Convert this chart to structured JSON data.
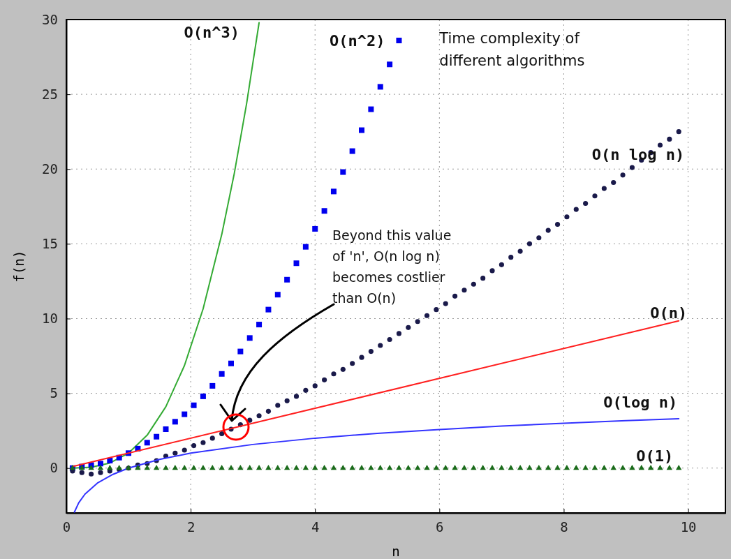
{
  "chart_data": {
    "type": "scatter",
    "title": "Time complexity of different algorithms",
    "xlabel": "n",
    "ylabel": "f(n)",
    "xlim": [
      0,
      10.6
    ],
    "ylim": [
      -3,
      30
    ],
    "xticks": [
      0,
      2,
      4,
      6,
      8,
      10
    ],
    "yticks": [
      0,
      5,
      10,
      15,
      20,
      25,
      30
    ],
    "grid": true,
    "annotations": [
      "Beyond this value of 'n', O(n log n) becomes costlier than O(n)"
    ],
    "series": [
      {
        "name": "O(n^3)",
        "type": "line",
        "color": "#33aa33",
        "marker": "none",
        "x": [
          0.1,
          0.4,
          0.7,
          1.0,
          1.3,
          1.6,
          1.9,
          2.2,
          2.5,
          2.7,
          2.9,
          3.1
        ],
        "values": [
          0,
          0.06,
          0.34,
          1,
          2.2,
          4.1,
          6.86,
          10.65,
          15.63,
          19.68,
          24.39,
          29.79
        ]
      },
      {
        "name": "O(n^2)",
        "color": "#0000ee",
        "marker": "square",
        "x": [
          0.1,
          0.25,
          0.4,
          0.55,
          0.7,
          0.85,
          1.0,
          1.15,
          1.3,
          1.45,
          1.6,
          1.75,
          1.9,
          2.05,
          2.2,
          2.35,
          2.5,
          2.65,
          2.8,
          2.95,
          3.1,
          3.25,
          3.4,
          3.55,
          3.7,
          3.85,
          4.0,
          4.15,
          4.3,
          4.45,
          4.6,
          4.75,
          4.9,
          5.05,
          5.2,
          5.35
        ],
        "values": [
          0,
          0.1,
          0.2,
          0.3,
          0.5,
          0.7,
          1,
          1.3,
          1.7,
          2.1,
          2.6,
          3.1,
          3.6,
          4.2,
          4.8,
          5.5,
          6.3,
          7,
          7.8,
          8.7,
          9.6,
          10.6,
          11.6,
          12.6,
          13.7,
          14.8,
          16,
          17.2,
          18.5,
          19.8,
          21.2,
          22.6,
          24,
          25.5,
          27,
          28.6
        ]
      },
      {
        "name": "O(n log n)",
        "color": "#1a1a4a",
        "marker": "circle",
        "x": [
          0.1,
          0.25,
          0.4,
          0.55,
          0.7,
          0.85,
          1.0,
          1.15,
          1.3,
          1.45,
          1.6,
          1.75,
          1.9,
          2.05,
          2.2,
          2.35,
          2.5,
          2.65,
          2.8,
          2.95,
          3.1,
          3.25,
          3.4,
          3.55,
          3.7,
          3.85,
          4.0,
          4.15,
          4.3,
          4.45,
          4.6,
          4.75,
          4.9,
          5.05,
          5.2,
          5.35,
          5.5,
          5.65,
          5.8,
          5.95,
          6.1,
          6.25,
          6.4,
          6.55,
          6.7,
          6.85,
          7.0,
          7.15,
          7.3,
          7.45,
          7.6,
          7.75,
          7.9,
          8.05,
          8.2,
          8.35,
          8.5,
          8.65,
          8.8,
          8.95,
          9.1,
          9.25,
          9.4,
          9.55,
          9.7,
          9.85
        ],
        "values": [
          -0.2,
          -0.3,
          -0.4,
          -0.3,
          -0.2,
          -0.1,
          0,
          0.2,
          0.3,
          0.5,
          0.8,
          1,
          1.2,
          1.5,
          1.7,
          2,
          2.3,
          2.6,
          2.9,
          3.2,
          3.5,
          3.8,
          4.2,
          4.5,
          4.8,
          5.2,
          5.5,
          5.9,
          6.3,
          6.6,
          7,
          7.4,
          7.8,
          8.2,
          8.6,
          9,
          9.4,
          9.8,
          10.2,
          10.6,
          11,
          11.5,
          11.9,
          12.3,
          12.7,
          13.2,
          13.6,
          14.1,
          14.5,
          15,
          15.4,
          15.9,
          16.3,
          16.8,
          17.3,
          17.7,
          18.2,
          18.7,
          19.1,
          19.6,
          20.1,
          20.6,
          21.1,
          21.6,
          22,
          22.5
        ]
      },
      {
        "name": "O(n)",
        "type": "line",
        "color": "#ff2020",
        "marker": "none",
        "x": [
          0.1,
          9.85
        ],
        "values": [
          0.1,
          9.85
        ]
      },
      {
        "name": "O(log n)",
        "type": "line",
        "color": "#3333ff",
        "marker": "none",
        "x": [
          0.13,
          0.2,
          0.3,
          0.5,
          0.75,
          1,
          1.5,
          2,
          3,
          4,
          5,
          6,
          7,
          8,
          9,
          9.85
        ],
        "values": [
          -2.94,
          -2.32,
          -1.74,
          -1,
          -0.42,
          0,
          0.58,
          1,
          1.58,
          2,
          2.32,
          2.58,
          2.81,
          3,
          3.17,
          3.3
        ]
      },
      {
        "name": "O(1)",
        "color": "#1a6b1a",
        "marker": "triangle",
        "x": [
          0.1,
          0.25,
          0.4,
          0.55,
          0.7,
          0.85,
          1.0,
          1.15,
          1.3,
          1.45,
          1.6,
          1.75,
          1.9,
          2.05,
          2.2,
          2.35,
          2.5,
          2.65,
          2.8,
          2.95,
          3.1,
          3.25,
          3.4,
          3.55,
          3.7,
          3.85,
          4.0,
          4.15,
          4.3,
          4.45,
          4.6,
          4.75,
          4.9,
          5.05,
          5.2,
          5.35,
          5.5,
          5.65,
          5.8,
          5.95,
          6.1,
          6.25,
          6.4,
          6.55,
          6.7,
          6.85,
          7.0,
          7.15,
          7.3,
          7.45,
          7.6,
          7.75,
          7.9,
          8.05,
          8.2,
          8.35,
          8.5,
          8.65,
          8.8,
          8.95,
          9.1,
          9.25,
          9.4,
          9.55,
          9.7,
          9.85
        ],
        "values": [
          0,
          0,
          0,
          0,
          0,
          0,
          0,
          0,
          0,
          0,
          0,
          0,
          0,
          0,
          0,
          0,
          0,
          0,
          0,
          0,
          0,
          0,
          0,
          0,
          0,
          0,
          0,
          0,
          0,
          0,
          0,
          0,
          0,
          0,
          0,
          0,
          0,
          0,
          0,
          0,
          0,
          0,
          0,
          0,
          0,
          0,
          0,
          0,
          0,
          0,
          0,
          0,
          0,
          0,
          0,
          0,
          0,
          0,
          0,
          0,
          0,
          0,
          0,
          0,
          0,
          0
        ]
      }
    ]
  }
}
